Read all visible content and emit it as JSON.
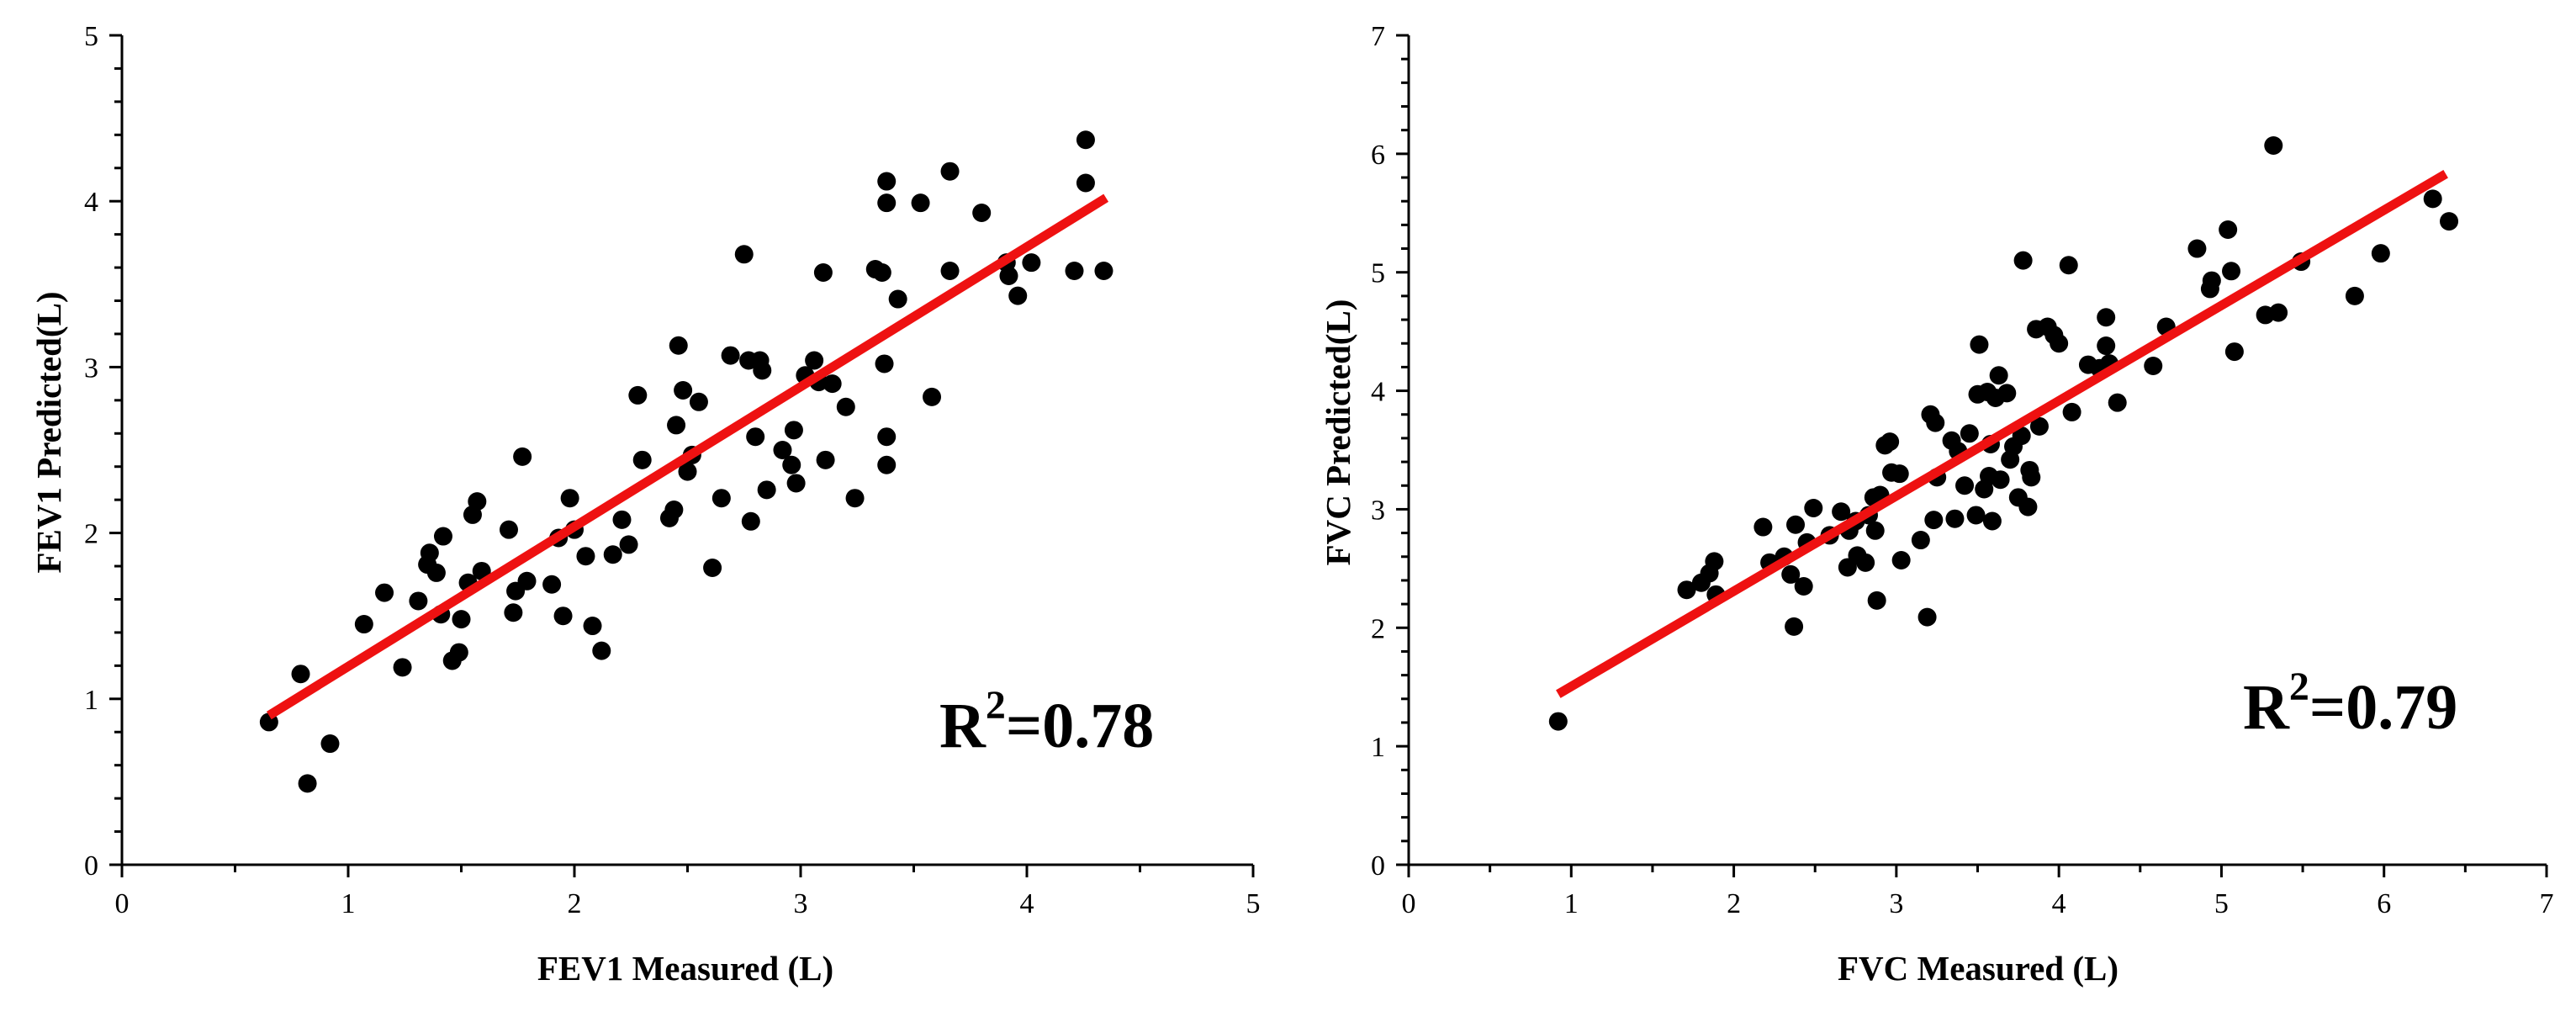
{
  "chart_data": [
    {
      "type": "scatter",
      "xlabel": "FEV1 Measured (L)",
      "ylabel": "FEV1 Predicted(L)",
      "xlim": [
        0,
        5
      ],
      "ylim": [
        0,
        5
      ],
      "xticks": [
        0,
        1,
        2,
        3,
        4,
        5
      ],
      "yticks": [
        0,
        1,
        2,
        3,
        4,
        5
      ],
      "annotation": {
        "prefix": "R",
        "sup": "2",
        "suffix": "=0.78"
      },
      "fit_line": {
        "color": "#ee1111",
        "x": [
          0.65,
          4.35
        ],
        "y": [
          0.9,
          4.02
        ]
      },
      "marker_color": "#000000",
      "points": [
        [
          0.65,
          0.86
        ],
        [
          0.79,
          1.15
        ],
        [
          0.82,
          0.49
        ],
        [
          0.92,
          0.73
        ],
        [
          1.07,
          1.45
        ],
        [
          1.16,
          1.64
        ],
        [
          1.24,
          1.19
        ],
        [
          1.31,
          1.59
        ],
        [
          1.35,
          1.81
        ],
        [
          1.36,
          1.88
        ],
        [
          1.39,
          1.76
        ],
        [
          1.42,
          1.98
        ],
        [
          1.41,
          1.51
        ],
        [
          1.46,
          1.23
        ],
        [
          1.49,
          1.28
        ],
        [
          1.5,
          1.48
        ],
        [
          1.53,
          1.7
        ],
        [
          1.55,
          2.11
        ],
        [
          1.57,
          2.19
        ],
        [
          1.59,
          1.77
        ],
        [
          1.71,
          2.02
        ],
        [
          1.73,
          1.52
        ],
        [
          1.74,
          1.65
        ],
        [
          1.77,
          2.46
        ],
        [
          1.79,
          1.71
        ],
        [
          1.9,
          1.69
        ],
        [
          1.93,
          1.97
        ],
        [
          1.95,
          1.5
        ],
        [
          1.98,
          2.21
        ],
        [
          2.0,
          2.02
        ],
        [
          2.05,
          1.86
        ],
        [
          2.08,
          1.44
        ],
        [
          2.12,
          1.29
        ],
        [
          2.17,
          1.87
        ],
        [
          2.21,
          2.08
        ],
        [
          2.24,
          1.93
        ],
        [
          2.28,
          2.83
        ],
        [
          2.3,
          2.44
        ],
        [
          2.42,
          2.09
        ],
        [
          2.44,
          2.14
        ],
        [
          2.45,
          2.65
        ],
        [
          2.46,
          3.13
        ],
        [
          2.48,
          2.86
        ],
        [
          2.5,
          2.37
        ],
        [
          2.52,
          2.47
        ],
        [
          2.55,
          2.79
        ],
        [
          2.61,
          1.79
        ],
        [
          2.65,
          2.21
        ],
        [
          2.69,
          3.07
        ],
        [
          2.75,
          3.68
        ],
        [
          2.77,
          3.04
        ],
        [
          2.78,
          2.07
        ],
        [
          2.8,
          2.58
        ],
        [
          2.82,
          3.04
        ],
        [
          2.83,
          2.98
        ],
        [
          2.85,
          2.26
        ],
        [
          2.92,
          2.5
        ],
        [
          2.96,
          2.41
        ],
        [
          2.97,
          2.62
        ],
        [
          2.98,
          2.3
        ],
        [
          3.02,
          2.95
        ],
        [
          3.06,
          3.04
        ],
        [
          3.08,
          2.91
        ],
        [
          3.1,
          3.57
        ],
        [
          3.11,
          2.44
        ],
        [
          3.14,
          2.9
        ],
        [
          3.2,
          2.76
        ],
        [
          3.24,
          2.21
        ],
        [
          3.33,
          3.59
        ],
        [
          3.36,
          3.57
        ],
        [
          3.37,
          3.02
        ],
        [
          3.38,
          2.41
        ],
        [
          3.38,
          2.58
        ],
        [
          3.38,
          3.99
        ],
        [
          3.38,
          4.12
        ],
        [
          3.43,
          3.41
        ],
        [
          3.53,
          3.99
        ],
        [
          3.58,
          2.82
        ],
        [
          3.66,
          3.58
        ],
        [
          3.66,
          4.18
        ],
        [
          3.8,
          3.93
        ],
        [
          3.91,
          3.63
        ],
        [
          3.92,
          3.55
        ],
        [
          3.96,
          3.43
        ],
        [
          4.02,
          3.63
        ],
        [
          4.21,
          3.58
        ],
        [
          4.26,
          4.37
        ],
        [
          4.26,
          4.11
        ],
        [
          4.34,
          3.58
        ]
      ]
    },
    {
      "type": "scatter",
      "xlabel": "FVC Measured (L)",
      "ylabel": "FVC Predicted(L)",
      "xlim": [
        0,
        7
      ],
      "ylim": [
        0,
        7
      ],
      "xticks": [
        0,
        1,
        2,
        3,
        4,
        5,
        6,
        7
      ],
      "yticks": [
        0,
        1,
        2,
        3,
        4,
        5,
        6,
        7
      ],
      "annotation": {
        "prefix": "R",
        "sup": "2",
        "suffix": "=0.79"
      },
      "fit_line": {
        "color": "#ee1111",
        "x": [
          0.92,
          6.38
        ],
        "y": [
          1.44,
          5.83
        ]
      },
      "marker_color": "#000000",
      "points": [
        [
          0.92,
          1.21
        ],
        [
          1.71,
          2.32
        ],
        [
          1.8,
          2.38
        ],
        [
          1.85,
          2.46
        ],
        [
          1.88,
          2.56
        ],
        [
          1.89,
          2.28
        ],
        [
          2.18,
          2.85
        ],
        [
          2.22,
          2.55
        ],
        [
          2.31,
          2.6
        ],
        [
          2.35,
          2.45
        ],
        [
          2.37,
          2.01
        ],
        [
          2.38,
          2.87
        ],
        [
          2.43,
          2.35
        ],
        [
          2.45,
          2.72
        ],
        [
          2.49,
          3.01
        ],
        [
          2.59,
          2.78
        ],
        [
          2.66,
          2.98
        ],
        [
          2.7,
          2.51
        ],
        [
          2.71,
          2.82
        ],
        [
          2.75,
          2.9
        ],
        [
          2.76,
          2.61
        ],
        [
          2.81,
          2.55
        ],
        [
          2.83,
          2.95
        ],
        [
          2.86,
          3.1
        ],
        [
          2.87,
          2.82
        ],
        [
          2.88,
          2.23
        ],
        [
          2.9,
          3.12
        ],
        [
          2.93,
          3.54
        ],
        [
          2.96,
          3.57
        ],
        [
          2.97,
          3.31
        ],
        [
          3.02,
          3.3
        ],
        [
          3.03,
          2.57
        ],
        [
          3.15,
          2.74
        ],
        [
          3.19,
          2.09
        ],
        [
          3.21,
          3.8
        ],
        [
          3.23,
          2.91
        ],
        [
          3.24,
          3.73
        ],
        [
          3.25,
          3.27
        ],
        [
          3.34,
          3.58
        ],
        [
          3.36,
          2.92
        ],
        [
          3.38,
          3.49
        ],
        [
          3.42,
          3.2
        ],
        [
          3.45,
          3.64
        ],
        [
          3.49,
          2.95
        ],
        [
          3.5,
          3.97
        ],
        [
          3.51,
          4.39
        ],
        [
          3.54,
          3.17
        ],
        [
          3.56,
          3.99
        ],
        [
          3.57,
          3.28
        ],
        [
          3.58,
          3.55
        ],
        [
          3.59,
          2.9
        ],
        [
          3.61,
          3.94
        ],
        [
          3.63,
          4.13
        ],
        [
          3.64,
          3.25
        ],
        [
          3.68,
          3.98
        ],
        [
          3.7,
          3.42
        ],
        [
          3.72,
          3.53
        ],
        [
          3.75,
          3.1
        ],
        [
          3.77,
          3.62
        ],
        [
          3.78,
          5.1
        ],
        [
          3.81,
          3.02
        ],
        [
          3.82,
          3.33
        ],
        [
          3.83,
          3.27
        ],
        [
          3.86,
          4.52
        ],
        [
          3.88,
          3.7
        ],
        [
          3.93,
          4.54
        ],
        [
          3.97,
          4.47
        ],
        [
          4.0,
          4.4
        ],
        [
          4.06,
          5.06
        ],
        [
          4.08,
          3.82
        ],
        [
          4.18,
          4.22
        ],
        [
          4.25,
          4.19
        ],
        [
          4.29,
          4.62
        ],
        [
          4.29,
          4.38
        ],
        [
          4.31,
          4.23
        ],
        [
          4.36,
          3.9
        ],
        [
          4.58,
          4.21
        ],
        [
          4.66,
          4.54
        ],
        [
          4.85,
          5.2
        ],
        [
          4.93,
          4.86
        ],
        [
          4.94,
          4.93
        ],
        [
          5.04,
          5.36
        ],
        [
          5.06,
          5.01
        ],
        [
          5.08,
          4.33
        ],
        [
          5.27,
          4.64
        ],
        [
          5.32,
          6.07
        ],
        [
          5.35,
          4.66
        ],
        [
          5.49,
          5.09
        ],
        [
          5.82,
          4.8
        ],
        [
          5.98,
          5.16
        ],
        [
          6.3,
          5.62
        ],
        [
          6.4,
          5.43
        ]
      ]
    }
  ]
}
